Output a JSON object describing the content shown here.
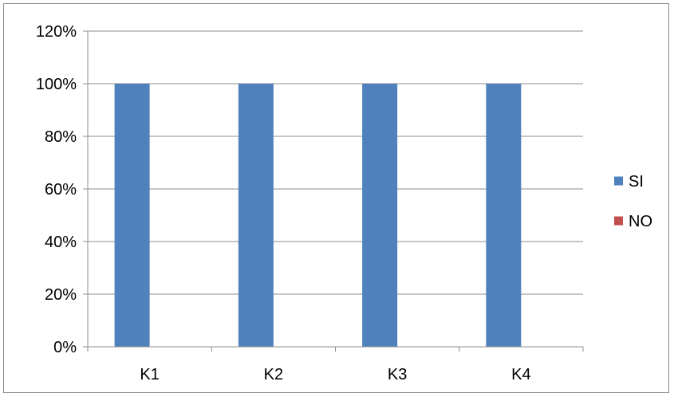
{
  "chart_data": {
    "type": "bar",
    "categories": [
      "K1",
      "K2",
      "K3",
      "K4"
    ],
    "series": [
      {
        "name": "SI",
        "values": [
          100,
          100,
          100,
          100
        ],
        "color": "#4f81bd"
      },
      {
        "name": "NO",
        "values": [
          0,
          0,
          0,
          0
        ],
        "color": "#c0504d"
      }
    ],
    "yticks": [
      "0%",
      "20%",
      "40%",
      "60%",
      "80%",
      "100%",
      "120%"
    ],
    "ylim": [
      0,
      120
    ],
    "grid": true,
    "legend_position": "right",
    "title": "",
    "xlabel": "",
    "ylabel": ""
  }
}
